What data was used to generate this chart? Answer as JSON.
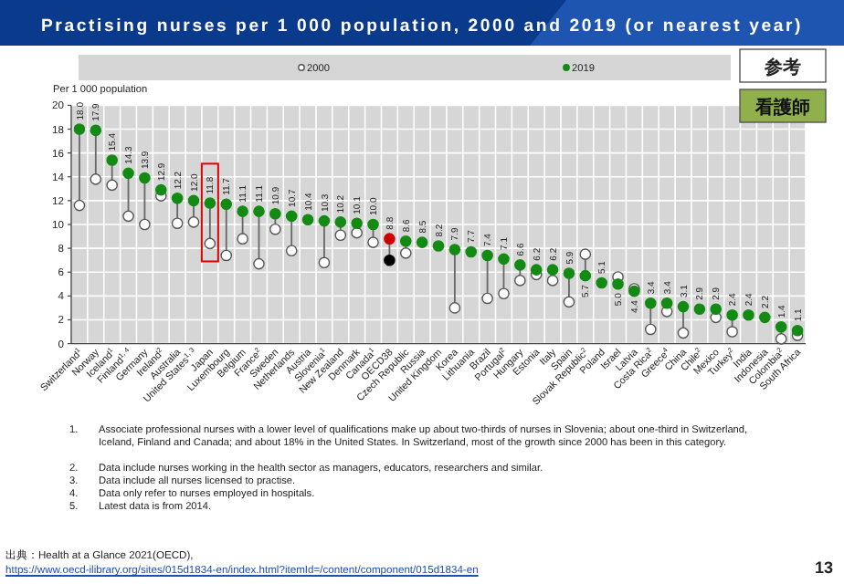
{
  "chart_data": {
    "type": "scatter",
    "title": "Practising nurses per 1 000 population, 2000 and 2019 (or nearest year)",
    "ylabel": "Per 1 000 population",
    "categories": [
      "Switzerland$^{1}$",
      "Norway",
      "Iceland$^{1}$",
      "Finland$^{1, 4}$",
      "Germany",
      "Ireland$^{2}$",
      "Australia",
      "United States$^{1, 3}$",
      "Japan",
      "Luxembourg",
      "Belgium",
      "France$^{2}$",
      "Sweden",
      "Netherlands",
      "Austria",
      "Slovenia$^{1}$",
      "New Zealand",
      "Denmark",
      "Canada$^{1}$",
      "OECD38",
      "Czech Republic",
      "Russia",
      "United Kingdom",
      "Korea",
      "Lithuania",
      "Brazil",
      "Portugal$^{2}$",
      "Hungary",
      "Estonia",
      "Italy",
      "Spain",
      "Slovak Republic$^{2}$",
      "Poland",
      "Israel",
      "Latvia",
      "Costa Rica$^{2}$",
      "Greece$^{4}$",
      "China",
      "Chile$^{2}$",
      "Mexico",
      "Turkey$^{2}$",
      "India",
      "Indonesia",
      "Colombia$^{2}$",
      "South Africa"
    ],
    "series": [
      {
        "name": "2000",
        "color": "#ffffff",
        "colors": [
          "#ffffff",
          "#ffffff",
          "#ffffff",
          "#ffffff",
          "#ffffff",
          "#ffffff",
          "#ffffff",
          "#ffffff",
          "#ffffff",
          "#ffffff",
          "#ffffff",
          "#ffffff",
          "#ffffff",
          "#ffffff",
          "#ffffff",
          "#ffffff",
          "#ffffff",
          "#ffffff",
          "#ffffff",
          "#000000",
          "#ffffff",
          "#ffffff",
          "#ffffff",
          "#ffffff",
          "#ffffff",
          "#ffffff",
          "#ffffff",
          "#ffffff",
          "#ffffff",
          "#ffffff",
          "#ffffff",
          "#ffffff",
          "#ffffff",
          "#ffffff",
          "#ffffff",
          "#ffffff",
          "#ffffff",
          "#ffffff",
          "#ffffff",
          "#ffffff",
          "#ffffff",
          "#ffffff",
          "#ffffff",
          "#ffffff",
          "#ffffff"
        ],
        "values": [
          11.6,
          13.8,
          13.3,
          10.7,
          10.0,
          12.4,
          10.1,
          10.2,
          8.4,
          7.4,
          8.8,
          6.7,
          9.6,
          7.8,
          null,
          6.8,
          9.1,
          9.3,
          8.5,
          7.0,
          7.6,
          null,
          null,
          3.0,
          null,
          3.8,
          4.2,
          5.3,
          5.8,
          5.3,
          3.5,
          7.5,
          null,
          5.6,
          4.6,
          1.2,
          2.7,
          0.9,
          null,
          2.2,
          1.0,
          null,
          null,
          0.4,
          0.7
        ]
      },
      {
        "name": "2019",
        "color": "#138a13",
        "colors": [
          "#138a13",
          "#138a13",
          "#138a13",
          "#138a13",
          "#138a13",
          "#138a13",
          "#138a13",
          "#138a13",
          "#138a13",
          "#138a13",
          "#138a13",
          "#138a13",
          "#138a13",
          "#138a13",
          "#138a13",
          "#138a13",
          "#138a13",
          "#138a13",
          "#138a13",
          "#cc0000",
          "#138a13",
          "#138a13",
          "#138a13",
          "#138a13",
          "#138a13",
          "#138a13",
          "#138a13",
          "#138a13",
          "#138a13",
          "#138a13",
          "#138a13",
          "#138a13",
          "#138a13",
          "#138a13",
          "#138a13",
          "#138a13",
          "#138a13",
          "#138a13",
          "#138a13",
          "#138a13",
          "#138a13",
          "#138a13",
          "#138a13",
          "#138a13",
          "#138a13"
        ],
        "values": [
          18.0,
          17.9,
          15.4,
          14.3,
          13.9,
          12.9,
          12.2,
          12.0,
          11.8,
          11.7,
          11.1,
          11.1,
          10.9,
          10.7,
          10.4,
          10.3,
          10.2,
          10.1,
          10.0,
          8.8,
          8.6,
          8.5,
          8.2,
          7.9,
          7.7,
          7.4,
          7.1,
          6.6,
          6.2,
          6.2,
          5.9,
          5.7,
          5.1,
          5.0,
          4.4,
          3.4,
          3.4,
          3.1,
          2.9,
          2.9,
          2.4,
          2.4,
          2.2,
          1.4,
          1.1
        ],
        "value_labels": [
          "18.0",
          "17.9",
          "15.4",
          "14.3",
          "13.9",
          "12.9",
          "12.2",
          "12.0",
          "11.8",
          "11.7",
          "11.1",
          "11.1",
          "10.9",
          "10.7",
          "10.4",
          "10.3",
          "10.2",
          "10.1",
          "10.0",
          "8.8",
          "8.6",
          "8.5",
          "8.2",
          "7.9",
          "7.7",
          "7.4",
          "7.1",
          "6.6",
          "6.2",
          "6.2",
          "5.9",
          "5.7",
          "5.1",
          "5.0",
          "4.4",
          "3.4",
          "3.4",
          "3.1",
          "2.9",
          "2.9",
          "2.4",
          "2.4",
          "2.2",
          "1.4",
          "1.1"
        ]
      }
    ],
    "ylim": [
      0,
      20
    ],
    "yticks": [
      0,
      2,
      4,
      6,
      8,
      10,
      12,
      14,
      16,
      18,
      20
    ],
    "grid": true,
    "legend": "top",
    "marker": "circle",
    "annotations": [
      "参考",
      "看護師",
      "1. Associate professional nurses with a lower level of qualifications make up about two-thirds of nurses in Slovenia; about one-third in Switzerland, Iceland, Finland and Canada; and about 18% in the United States. In Switzerland, most of the growth since 2000 has been in this category.",
      "2. Data include nurses working in the health sector as managers, educators, researchers and similar.",
      "3. Data include all nurses licensed to practise.",
      "4. Data only refer to nurses employed in hospitals.",
      "5. Latest data is from 2014.",
      "出典：Health at a Glance 2021(OECD),",
      "https://www.oecd-ilibrary.org/sites/015d1834-en/index.html?itemId=/content/component/015d1834-en",
      "13"
    ]
  }
}
